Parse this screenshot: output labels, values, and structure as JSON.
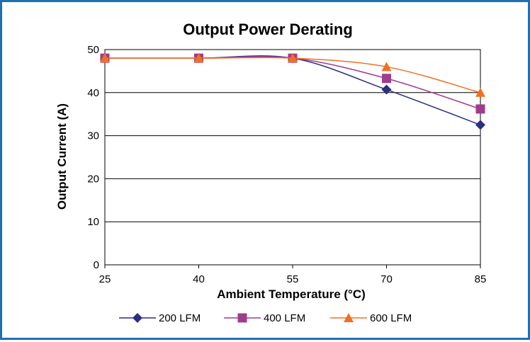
{
  "chart_data": {
    "type": "line",
    "title": "Output Power Derating",
    "xlabel": "Ambient Temperature (°C)",
    "ylabel": "Output Current (A)",
    "x": [
      25,
      40,
      55,
      70,
      85
    ],
    "xticks": [
      "25",
      "40",
      "55",
      "70",
      "85"
    ],
    "ylim": [
      0,
      50
    ],
    "yticks": [
      "0",
      "10",
      "20",
      "30",
      "40",
      "50"
    ],
    "grid": "horizontal",
    "legend_position": "bottom",
    "series": [
      {
        "name": "200 LFM",
        "values": [
          48,
          48,
          48,
          40.7,
          32.5
        ],
        "color": "#2b2f7e",
        "marker": "diamond"
      },
      {
        "name": "400 LFM",
        "values": [
          48,
          48,
          48,
          43.3,
          36.2
        ],
        "color": "#a03c8c",
        "marker": "square"
      },
      {
        "name": "600 LFM",
        "values": [
          48,
          48,
          48,
          46,
          40
        ],
        "color": "#f07023",
        "marker": "triangle"
      }
    ]
  }
}
